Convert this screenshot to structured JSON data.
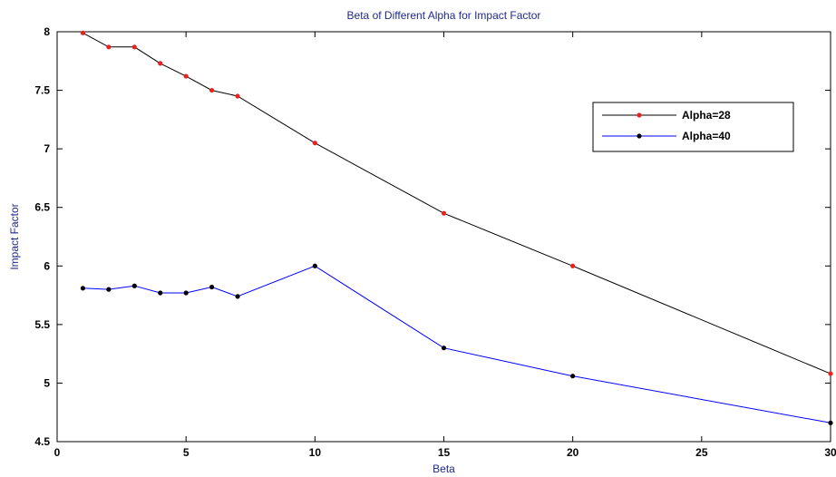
{
  "chart_data": {
    "type": "line",
    "title": "Beta of Different Alpha for Impact Factor",
    "xlabel": "Beta",
    "ylabel": "Impact Factor",
    "xlim": [
      0,
      30
    ],
    "ylim": [
      4.5,
      8
    ],
    "x_ticks": [
      0,
      5,
      10,
      15,
      20,
      25,
      30
    ],
    "y_ticks": [
      4.5,
      5,
      5.5,
      6,
      6.5,
      7,
      7.5,
      8
    ],
    "x_tick_labels": [
      "0",
      "5",
      "10",
      "15",
      "20",
      "25",
      "30"
    ],
    "y_tick_labels": [
      "4.5",
      "5",
      "5.5",
      "6",
      "6.5",
      "7",
      "7.5",
      "8"
    ],
    "grid": false,
    "legend_position": "top-right",
    "series": [
      {
        "name": "Alpha=28",
        "line_color": "#000000",
        "marker_color": "#e8231f",
        "x": [
          1,
          2,
          3,
          4,
          5,
          6,
          7,
          10,
          15,
          20,
          30
        ],
        "y": [
          7.99,
          7.87,
          7.87,
          7.73,
          7.62,
          7.5,
          7.45,
          7.05,
          6.45,
          6.0,
          5.08
        ]
      },
      {
        "name": "Alpha=40",
        "line_color": "#0000ff",
        "marker_color": "#000000",
        "x": [
          1,
          2,
          3,
          4,
          5,
          6,
          7,
          10,
          15,
          20,
          30
        ],
        "y": [
          5.81,
          5.8,
          5.83,
          5.77,
          5.77,
          5.82,
          5.74,
          6.0,
          5.3,
          5.06,
          4.66
        ]
      }
    ]
  }
}
